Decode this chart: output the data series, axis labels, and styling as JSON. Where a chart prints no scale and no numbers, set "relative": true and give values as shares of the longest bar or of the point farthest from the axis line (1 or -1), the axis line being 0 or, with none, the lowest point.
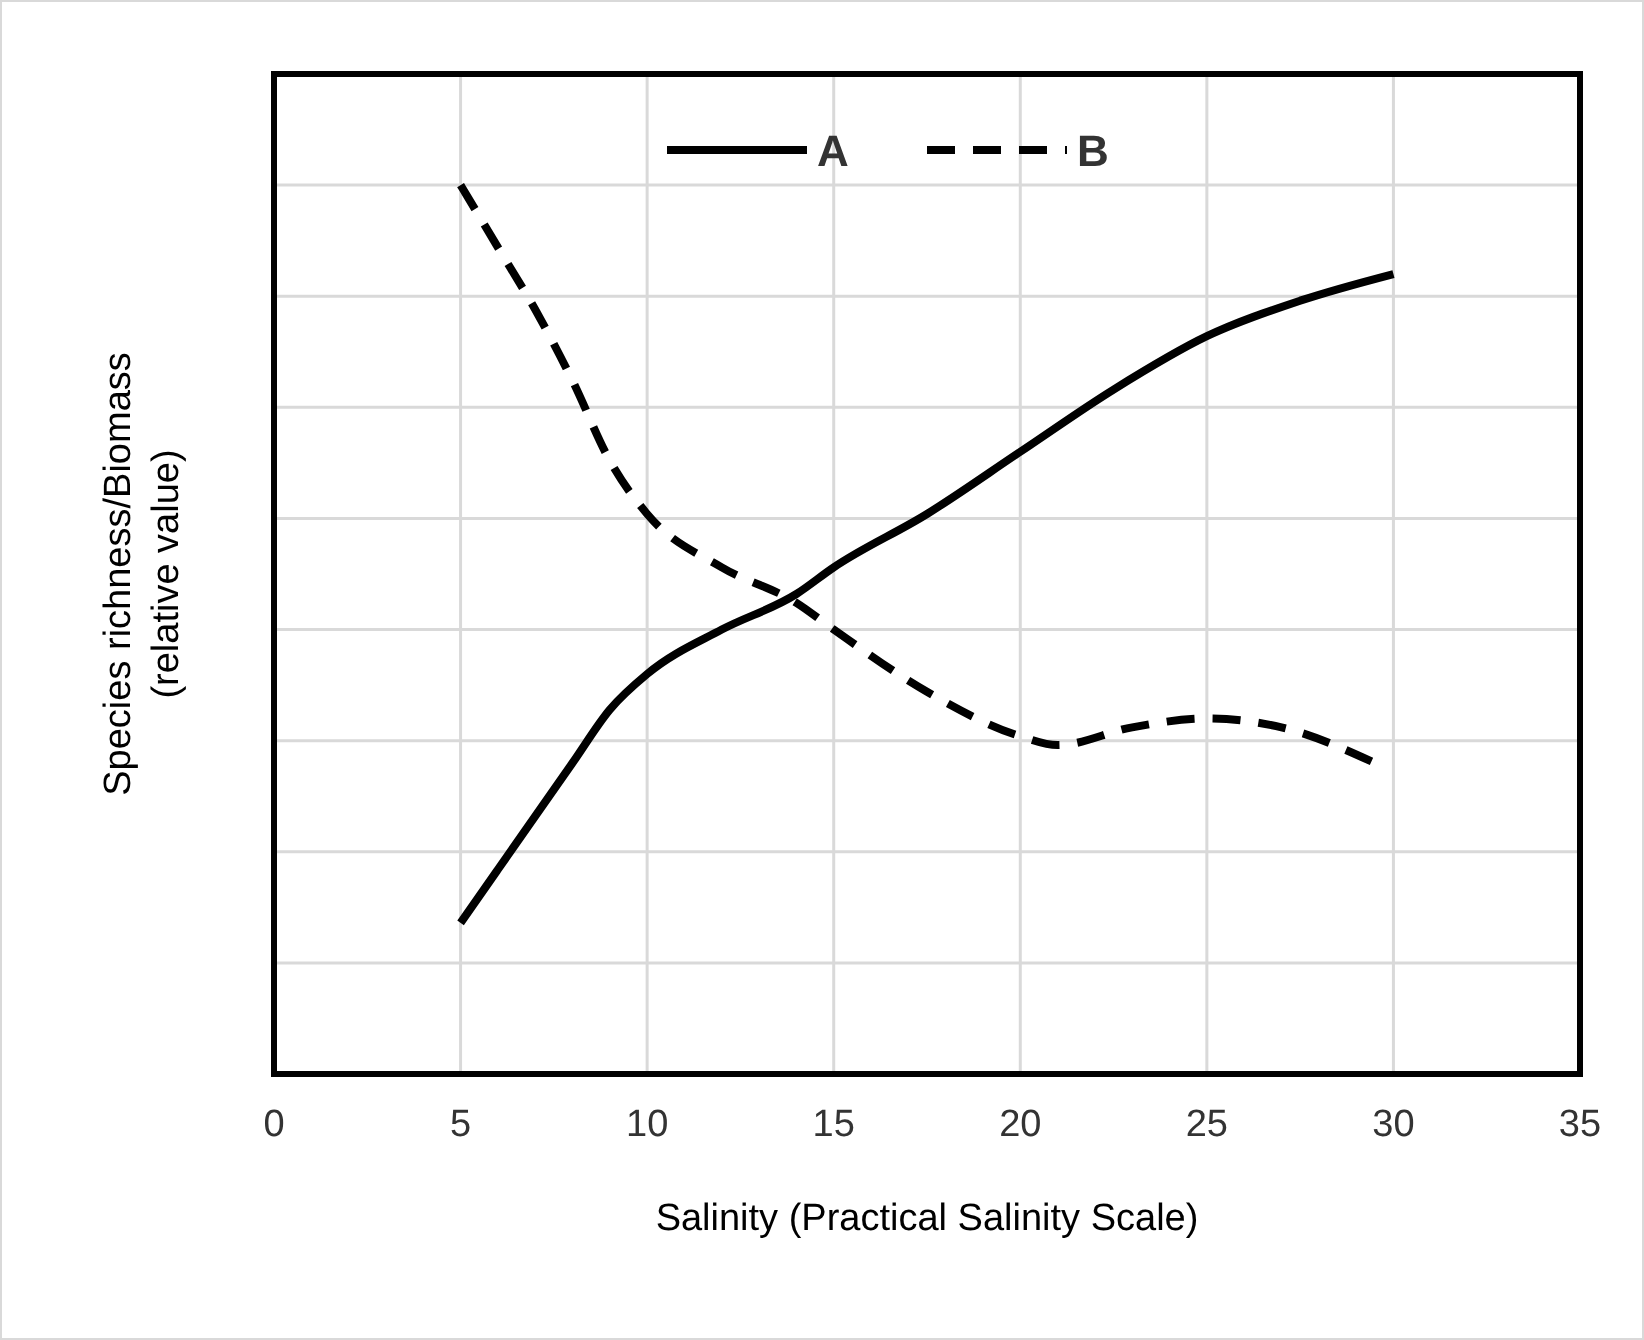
{
  "chart_data": {
    "type": "line",
    "relative": true,
    "xlabel": "Salinity (Practical Salinity Scale)",
    "ylabel": "Species richness/Biomass\n(relative value)",
    "xlim": [
      0,
      35
    ],
    "xticks": [
      0,
      5,
      10,
      15,
      20,
      25,
      30,
      35
    ],
    "grid": true,
    "legend": "top",
    "series": [
      {
        "name": "A",
        "color": "#000000",
        "line_style": "solid",
        "x": [
          5,
          6,
          8,
          9,
          10,
          12,
          14,
          15,
          17.5,
          20,
          22.5,
          25,
          27.5,
          30
        ],
        "values": [
          0.17,
          0.23,
          0.35,
          0.41,
          0.45,
          0.5,
          0.54,
          0.57,
          0.63,
          0.7,
          0.77,
          0.83,
          0.87,
          0.9
        ]
      },
      {
        "name": "B",
        "color": "#000000",
        "line_style": "dashed",
        "x": [
          5,
          6,
          7,
          8,
          9,
          10,
          12,
          14,
          15,
          17.5,
          20,
          21,
          23,
          25,
          27,
          29.5
        ],
        "values": [
          1,
          0.93,
          0.86,
          0.78,
          0.69,
          0.63,
          0.57,
          0.53,
          0.5,
          0.43,
          0.38,
          0.37,
          0.39,
          0.4,
          0.39,
          0.35
        ]
      }
    ]
  }
}
